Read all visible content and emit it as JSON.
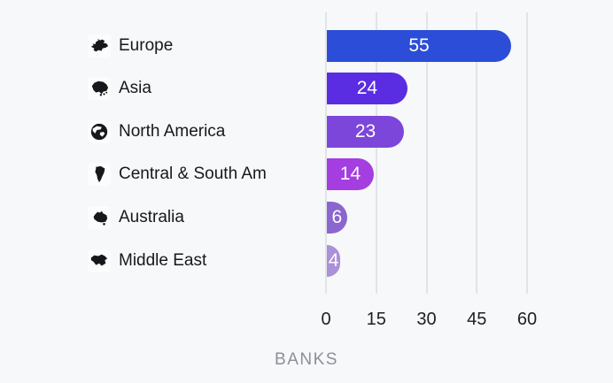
{
  "chart_data": {
    "type": "bar",
    "orientation": "horizontal",
    "title": "",
    "xlabel": "BANKS",
    "ylabel": "",
    "categories": [
      "Europe",
      "Asia",
      "North America",
      "Central & South Am",
      "Australia",
      "Middle East"
    ],
    "values": [
      55,
      24,
      23,
      14,
      6,
      4
    ],
    "value_labels": [
      "55",
      "24",
      "23",
      "14",
      "6",
      "4"
    ],
    "bar_colors": [
      "#2b4dd8",
      "#5a2ce2",
      "#7c46da",
      "#a43ee0",
      "#8a66cf",
      "#ab90da"
    ],
    "icons": [
      "europe-icon",
      "asia-icon",
      "north-america-icon",
      "central-south-america-icon",
      "australia-icon",
      "middle-east-icon"
    ],
    "x_ticks": [
      "0",
      "15",
      "30",
      "45",
      "60"
    ],
    "x_tick_values": [
      0,
      15,
      30,
      45,
      60
    ],
    "xlim": [
      0,
      60
    ],
    "grid": true,
    "legend": false,
    "value_label_position": "inside-center"
  },
  "colors": {
    "background": "#f7f8f9",
    "gridline": "#e3e4e8",
    "category_text": "#16181d",
    "tick_text": "#1c1f26",
    "axis_title_text": "#8b9099",
    "bar_value_text": "#ffffff",
    "icon_fill": "#17181c"
  }
}
